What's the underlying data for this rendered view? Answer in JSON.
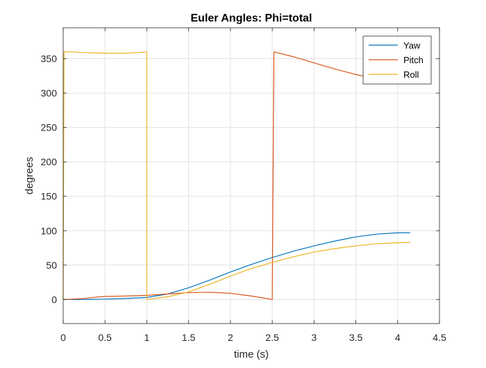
{
  "chart_data": {
    "type": "line",
    "title": "Euler Angles: Phi=total",
    "xlabel": "time (s)",
    "ylabel": "degrees",
    "xlim": [
      0,
      4.5
    ],
    "ylim": [
      -35,
      395
    ],
    "xticks": [
      0,
      0.5,
      1,
      1.5,
      2,
      2.5,
      3,
      3.5,
      4,
      4.5
    ],
    "xtick_labels": [
      "0",
      "0.5",
      "1",
      "1.5",
      "2",
      "2.5",
      "3",
      "3.5",
      "4",
      "4.5"
    ],
    "yticks": [
      0,
      50,
      100,
      150,
      200,
      250,
      300,
      350
    ],
    "ytick_labels": [
      "0",
      "50",
      "100",
      "150",
      "200",
      "250",
      "300",
      "350"
    ],
    "grid": true,
    "legend_position": "top-right",
    "series": [
      {
        "name": "Yaw",
        "color": "#0072BD",
        "x": [
          0,
          0.25,
          0.5,
          0.75,
          1.0,
          1.25,
          1.5,
          1.75,
          2.0,
          2.25,
          2.5,
          2.75,
          3.0,
          3.25,
          3.5,
          3.75,
          4.0,
          4.15
        ],
        "y": [
          0,
          0,
          0.5,
          1.5,
          3,
          8,
          17,
          28,
          40,
          51,
          61,
          70,
          78,
          85,
          91,
          95,
          97,
          97
        ]
      },
      {
        "name": "Pitch",
        "color": "#D95319",
        "x": [
          0,
          0.1,
          0.25,
          0.4,
          0.5,
          0.75,
          1.0,
          1.25,
          1.5,
          1.75,
          2.0,
          2.25,
          2.5,
          2.52,
          2.75,
          3.0,
          3.25,
          3.5,
          3.75,
          4.0,
          4.15
        ],
        "y": [
          0,
          0.5,
          1.5,
          3.5,
          4.5,
          5,
          6,
          8,
          10,
          10.5,
          9,
          5,
          0,
          360,
          353,
          344,
          335,
          327,
          321,
          316,
          314
        ]
      },
      {
        "name": "Roll",
        "color": "#EDB120",
        "x": [
          0,
          0.01,
          0.1,
          0.25,
          0.5,
          0.75,
          0.9,
          1.0,
          1.0,
          1.25,
          1.5,
          1.75,
          2.0,
          2.25,
          2.5,
          2.75,
          3.0,
          3.25,
          3.5,
          3.75,
          4.0,
          4.15
        ],
        "y": [
          0,
          360,
          360,
          359,
          358,
          358,
          359,
          360,
          0,
          4,
          11,
          22,
          34,
          45,
          54,
          62,
          69,
          74,
          78,
          81,
          82.5,
          83
        ]
      }
    ]
  }
}
